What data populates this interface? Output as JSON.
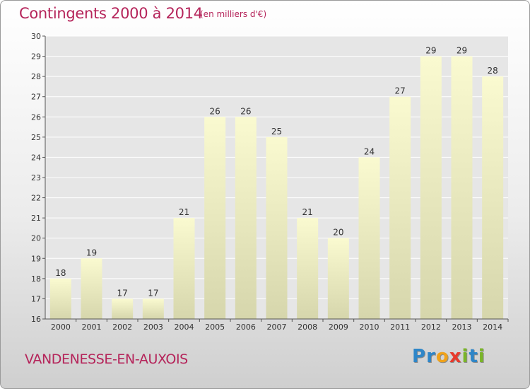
{
  "header": {
    "title": "Contingents 2000 à 2014",
    "subtitle": "(en milliers d'€)"
  },
  "footer": {
    "commune": "VANDENESSE-EN-AUXOIS",
    "logo_letters": [
      {
        "ch": "P",
        "color": "#2e86c8"
      },
      {
        "ch": "r",
        "color": "#2e86c8"
      },
      {
        "ch": "o",
        "color": "#f0a21a"
      },
      {
        "ch": "x",
        "color": "#e8392b"
      },
      {
        "ch": "i",
        "color": "#7ab528"
      },
      {
        "ch": "t",
        "color": "#2e86c8"
      },
      {
        "ch": "i",
        "color": "#7ab528"
      }
    ]
  },
  "colors": {
    "accent": "#b5245a",
    "bar_top": "#fafad0",
    "bar_bottom": "#d6d6ac",
    "grid": "#ffffff",
    "plot_bg": "#e6e6e6"
  },
  "chart_data": {
    "type": "bar",
    "title": "Contingents 2000 à 2014",
    "subtitle": "(en milliers d'€)",
    "xlabel": "",
    "ylabel": "",
    "categories": [
      "2000",
      "2001",
      "2002",
      "2003",
      "2004",
      "2005",
      "2006",
      "2007",
      "2008",
      "2009",
      "2010",
      "2011",
      "2012",
      "2013",
      "2014"
    ],
    "values": [
      18,
      19,
      17,
      17,
      21,
      26,
      26,
      25,
      21,
      20,
      24,
      27,
      29,
      29,
      28
    ],
    "ylim": [
      16,
      30
    ],
    "yticks": [
      16,
      17,
      18,
      19,
      20,
      21,
      22,
      23,
      24,
      25,
      26,
      27,
      28,
      29,
      30
    ],
    "grid": true,
    "data_labels": true
  }
}
